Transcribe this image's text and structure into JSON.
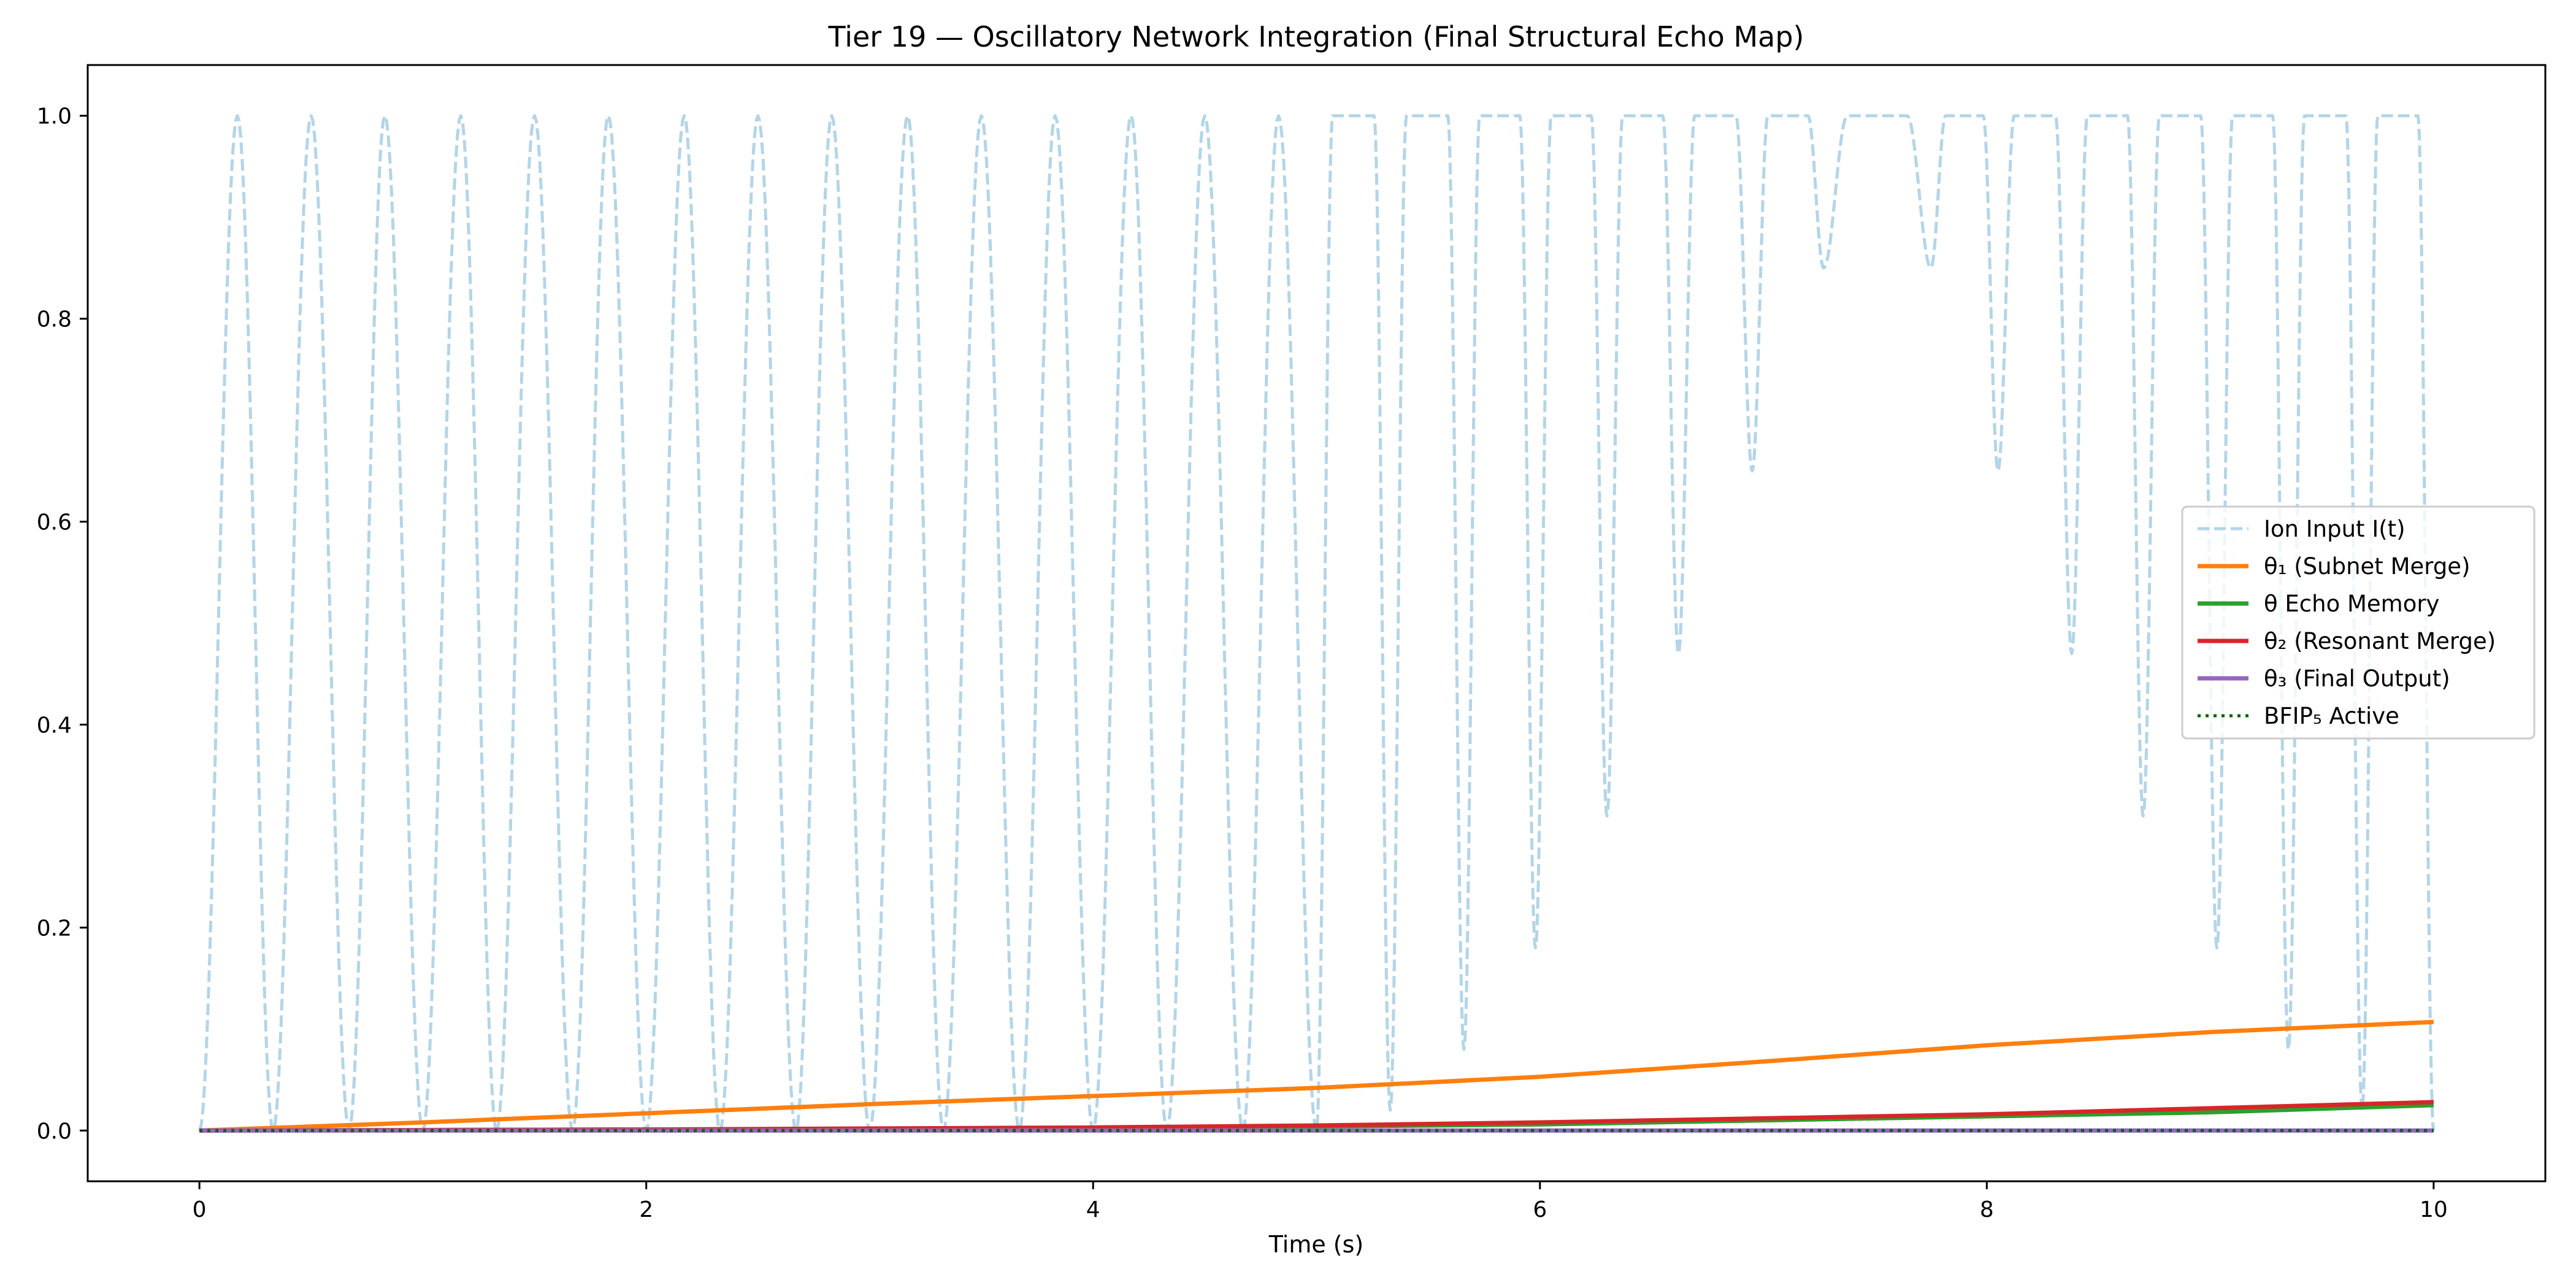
{
  "chart_data": {
    "type": "line",
    "title": "Tier 19 — Oscillatory Network Integration (Final Structural Echo Map)",
    "xlabel": "Time (s)",
    "ylabel": "",
    "xlim": [
      -0.5,
      10.5
    ],
    "ylim": [
      -0.05,
      1.05
    ],
    "xticks": [
      0,
      2,
      4,
      6,
      8,
      10
    ],
    "xtick_labels": [
      "0",
      "2",
      "4",
      "6",
      "8",
      "10"
    ],
    "yticks": [
      0.0,
      0.2,
      0.4,
      0.6,
      0.8,
      1.0
    ],
    "ytick_labels": [
      "0.0",
      "0.2",
      "0.4",
      "0.6",
      "0.8",
      "1.0"
    ],
    "grid": false,
    "legend_position": "center-right",
    "series": [
      {
        "name": "Ion Input I(t)",
        "color": "#a6cee3",
        "style": "dashed",
        "description": "clipped oscillation between 0 and 1 whose troughs rise after t≈5 s",
        "peaks_t": [
          0.17,
          0.5,
          0.83,
          1.17,
          1.5,
          1.83,
          2.17,
          2.5,
          2.83,
          3.17,
          3.5,
          3.83,
          4.17,
          4.5,
          4.83
        ],
        "troughs": [
          {
            "t": 0.0,
            "v": 0.0
          },
          {
            "t": 0.33,
            "v": 0.0
          },
          {
            "t": 0.67,
            "v": 0.0
          },
          {
            "t": 1.0,
            "v": 0.0
          },
          {
            "t": 1.33,
            "v": 0.0
          },
          {
            "t": 1.67,
            "v": 0.0
          },
          {
            "t": 2.0,
            "v": 0.0
          },
          {
            "t": 2.33,
            "v": 0.0
          },
          {
            "t": 2.67,
            "v": 0.0
          },
          {
            "t": 3.0,
            "v": 0.0
          },
          {
            "t": 3.33,
            "v": 0.0
          },
          {
            "t": 3.67,
            "v": 0.0
          },
          {
            "t": 4.0,
            "v": 0.0
          },
          {
            "t": 4.33,
            "v": 0.0
          },
          {
            "t": 4.67,
            "v": 0.0
          },
          {
            "t": 5.0,
            "v": 0.0
          },
          {
            "t": 5.33,
            "v": 0.02
          },
          {
            "t": 5.66,
            "v": 0.08
          },
          {
            "t": 5.98,
            "v": 0.18
          },
          {
            "t": 6.3,
            "v": 0.31
          },
          {
            "t": 6.62,
            "v": 0.47
          },
          {
            "t": 6.95,
            "v": 0.65
          },
          {
            "t": 7.27,
            "v": 0.85
          },
          {
            "t": 7.75,
            "v": 0.85
          },
          {
            "t": 8.05,
            "v": 0.65
          },
          {
            "t": 8.38,
            "v": 0.47
          },
          {
            "t": 8.7,
            "v": 0.31
          },
          {
            "t": 9.03,
            "v": 0.18
          },
          {
            "t": 9.35,
            "v": 0.08
          },
          {
            "t": 9.68,
            "v": 0.02
          },
          {
            "t": 10.0,
            "v": 0.0
          }
        ]
      },
      {
        "name": "θ₁ (Subnet Merge)",
        "color": "#ff7f0e",
        "style": "solid",
        "x": [
          0,
          1,
          2,
          3,
          4,
          5,
          6,
          7,
          8,
          9,
          10
        ],
        "y": [
          0.0,
          0.008,
          0.017,
          0.026,
          0.034,
          0.042,
          0.053,
          0.068,
          0.084,
          0.097,
          0.107
        ]
      },
      {
        "name": "θ Echo Memory",
        "color": "#2ca02c",
        "style": "solid",
        "x": [
          0,
          2,
          4,
          6,
          8,
          9,
          10
        ],
        "y": [
          0.0,
          0.001,
          0.002,
          0.006,
          0.014,
          0.018,
          0.025
        ]
      },
      {
        "name": "θ₂ (Resonant Merge)",
        "color": "#d62728",
        "style": "solid",
        "x": [
          0,
          2,
          4,
          5,
          6,
          7,
          8,
          9,
          10
        ],
        "y": [
          0.0,
          0.001,
          0.003,
          0.005,
          0.008,
          0.012,
          0.016,
          0.022,
          0.028
        ]
      },
      {
        "name": "θ₃ (Final Output)",
        "color": "#9467bd",
        "style": "solid",
        "x": [
          0,
          10
        ],
        "y": [
          0.0,
          0.0
        ]
      },
      {
        "name": "BFIP₅ Active",
        "color": "#006400",
        "style": "dotted",
        "x": [
          0,
          10
        ],
        "y": [
          0.0,
          0.0
        ]
      }
    ]
  }
}
